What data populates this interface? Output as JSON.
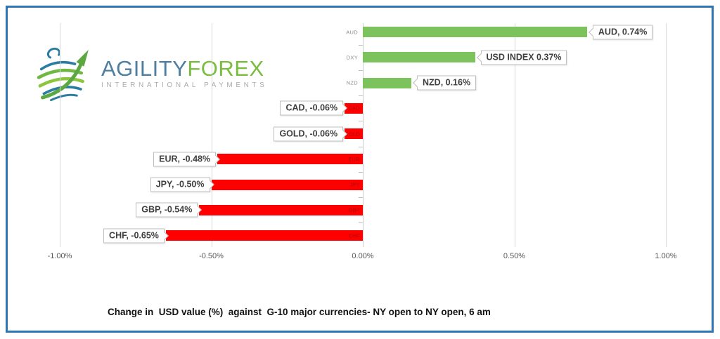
{
  "window": {
    "background": "#FFFFFF",
    "border_color": "#2E75B6"
  },
  "logo": {
    "brand_primary": "AGILITY",
    "brand_secondary": "FOREX",
    "tagline": "INTERNATIONAL PAYMENTS",
    "colors": {
      "primary": "#4E7FA0",
      "secondary": "#79BD3F",
      "tagline": "#ABABAB",
      "globe_teal": "#2B7CA3",
      "globe_green": "#6FB844"
    }
  },
  "chart_data": {
    "type": "bar",
    "orientation": "horizontal",
    "title": "Change in  USD value (%)  against  G-10 major currencies- NY open to NY open, 6 am",
    "categories": [
      "AUD",
      "DXY",
      "NZD",
      "CAD",
      "GOLD",
      "EUR",
      "JPY",
      "GBP",
      "CHF"
    ],
    "values": [
      0.74,
      0.37,
      0.16,
      -0.06,
      -0.06,
      -0.48,
      -0.5,
      -0.54,
      -0.65
    ],
    "data_labels": [
      "AUD, 0.74%",
      "USD INDEX 0.37%",
      "NZD, 0.16%",
      "CAD, -0.06%",
      "GOLD, -0.06%",
      "EUR, -0.48%",
      "JPY, -0.50%",
      "GBP, -0.54%",
      "CHF, -0.65%"
    ],
    "xticks": [
      "-1.00%",
      "-0.50%",
      "0.00%",
      "0.50%",
      "1.00%"
    ],
    "xtick_values": [
      -1.0,
      -0.5,
      0.0,
      0.5,
      1.0
    ],
    "xlim": [
      -1.0,
      1.0
    ],
    "grid": true,
    "legend": false,
    "positive_color": "#7CC35E",
    "negative_color": "#FF0000",
    "gridline_color": "#D9D9D9"
  }
}
